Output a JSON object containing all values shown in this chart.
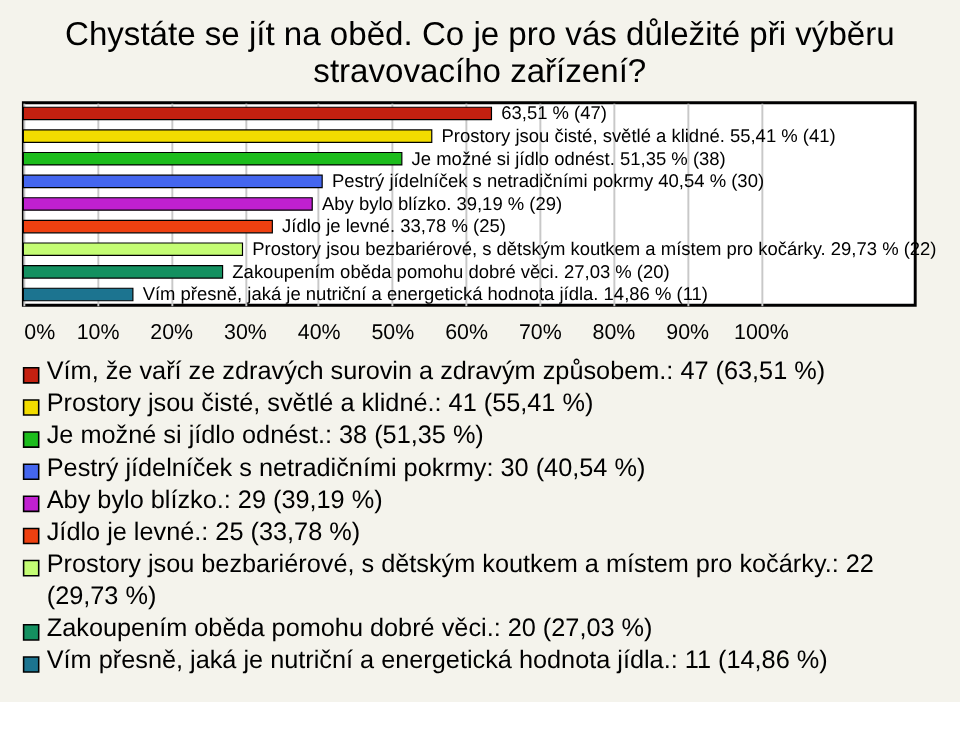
{
  "chart_data": {
    "type": "bar",
    "orientation": "horizontal",
    "title": "Chystáte se jít na oběd. Co je pro vás důležité při výběru stravovacího zařízení?",
    "categories": [
      null,
      null,
      null,
      null,
      null,
      null,
      null,
      null,
      null
    ],
    "series": [
      {
        "name": "Vím, že vaří ze zdravých surovin a zdravým způsobem.: 47 (63,51 %)",
        "color": "#c42010",
        "values": [
          63.51,
          null,
          null,
          null,
          null,
          null,
          null,
          null,
          null
        ],
        "value_labels": [
          "63,51 % (47)",
          null,
          null,
          null,
          null,
          null,
          null,
          null,
          null
        ]
      },
      {
        "name": "Prostory jsou čisté, světlé a klidné.: 41 (55,41 %)",
        "color": "#f2dc00",
        "values": [
          null,
          55.41,
          null,
          null,
          null,
          null,
          null,
          null,
          null
        ],
        "value_labels": [
          null,
          "Prostory jsou čisté, světlé a klidné. 55,41 % (41)",
          null,
          null,
          null,
          null,
          null,
          null,
          null
        ]
      },
      {
        "name": "Je možné si jídlo odnést.: 38 (51,35 %)",
        "color": "#1cbc1c",
        "values": [
          null,
          null,
          51.35,
          null,
          null,
          null,
          null,
          null,
          null
        ],
        "value_labels": [
          null,
          null,
          "Je možné si jídlo odnést. 51,35 % (38)",
          null,
          null,
          null,
          null,
          null,
          null
        ]
      },
      {
        "name": "Pestrý jídelníček s netradičními pokrmy: 30 (40,54 %)",
        "color": "#4466ee",
        "values": [
          null,
          null,
          null,
          40.54,
          null,
          null,
          null,
          null,
          null
        ],
        "value_labels": [
          null,
          null,
          null,
          "Pestrý jídelníček s netradičními pokrmy 40,54 % (30)",
          null,
          null,
          null,
          null,
          null
        ]
      },
      {
        "name": "Aby bylo blízko.: 29 (39,19 %)",
        "color": "#c020d0",
        "values": [
          null,
          null,
          null,
          null,
          39.19,
          null,
          null,
          null,
          null
        ],
        "value_labels": [
          null,
          null,
          null,
          null,
          "Aby bylo blízko. 39,19 % (29)",
          null,
          null,
          null,
          null
        ]
      },
      {
        "name": "Jídlo je levné.: 25 (33,78 %)",
        "color": "#ee4010",
        "values": [
          null,
          null,
          null,
          null,
          null,
          33.78,
          null,
          null,
          null
        ],
        "value_labels": [
          null,
          null,
          null,
          null,
          null,
          "Jídlo je levné. 33,78 % (25)",
          null,
          null,
          null
        ]
      },
      {
        "name": "Prostory jsou bezbariérové, s dětským koutkem a místem pro kočárky.: 22 (29,73 %)",
        "color": "#c4fc74",
        "values": [
          null,
          null,
          null,
          null,
          null,
          null,
          29.73,
          null,
          null
        ],
        "value_labels": [
          null,
          null,
          null,
          null,
          null,
          null,
          "Prostory jsou bezbariérové, s dětským koutkem a místem pro kočárky. 29,73 % (22)",
          null,
          null
        ]
      },
      {
        "name": "Zakoupením oběda pomohu dobré věci.: 20 (27,03 %)",
        "color": "#149060",
        "values": [
          null,
          null,
          null,
          null,
          null,
          null,
          null,
          27.03,
          null
        ],
        "value_labels": [
          null,
          null,
          null,
          null,
          null,
          null,
          null,
          "Zakoupením oběda pomohu dobré věci. 27,03 % (20)",
          null
        ]
      },
      {
        "name": "Vím přesně, jaká je nutriční a energetická hodnota jídla.: 11 (14,86 %)",
        "color": "#1c7490",
        "values": [
          null,
          null,
          null,
          null,
          null,
          null,
          null,
          null,
          14.86
        ],
        "value_labels": [
          null,
          null,
          null,
          null,
          null,
          null,
          null,
          null,
          "Vím přesně, jaká je nutriční a energetická hodnota jídla. 14,86 % (11)"
        ]
      }
    ],
    "xlim": [
      0,
      121
    ],
    "xticks": [
      {
        "value": 0,
        "label": "0%"
      },
      {
        "value": 10,
        "label": "10%"
      },
      {
        "value": 20,
        "label": "20%"
      },
      {
        "value": 30,
        "label": "30%"
      },
      {
        "value": 40,
        "label": "40%"
      },
      {
        "value": 50,
        "label": "50%"
      },
      {
        "value": 60,
        "label": "60%"
      },
      {
        "value": 70,
        "label": "70%"
      },
      {
        "value": 80,
        "label": "80%"
      },
      {
        "value": 90,
        "label": "90%"
      },
      {
        "value": 100,
        "label": "100%"
      }
    ],
    "grid": "x",
    "legend": "bottom",
    "tick_labels": "x"
  }
}
